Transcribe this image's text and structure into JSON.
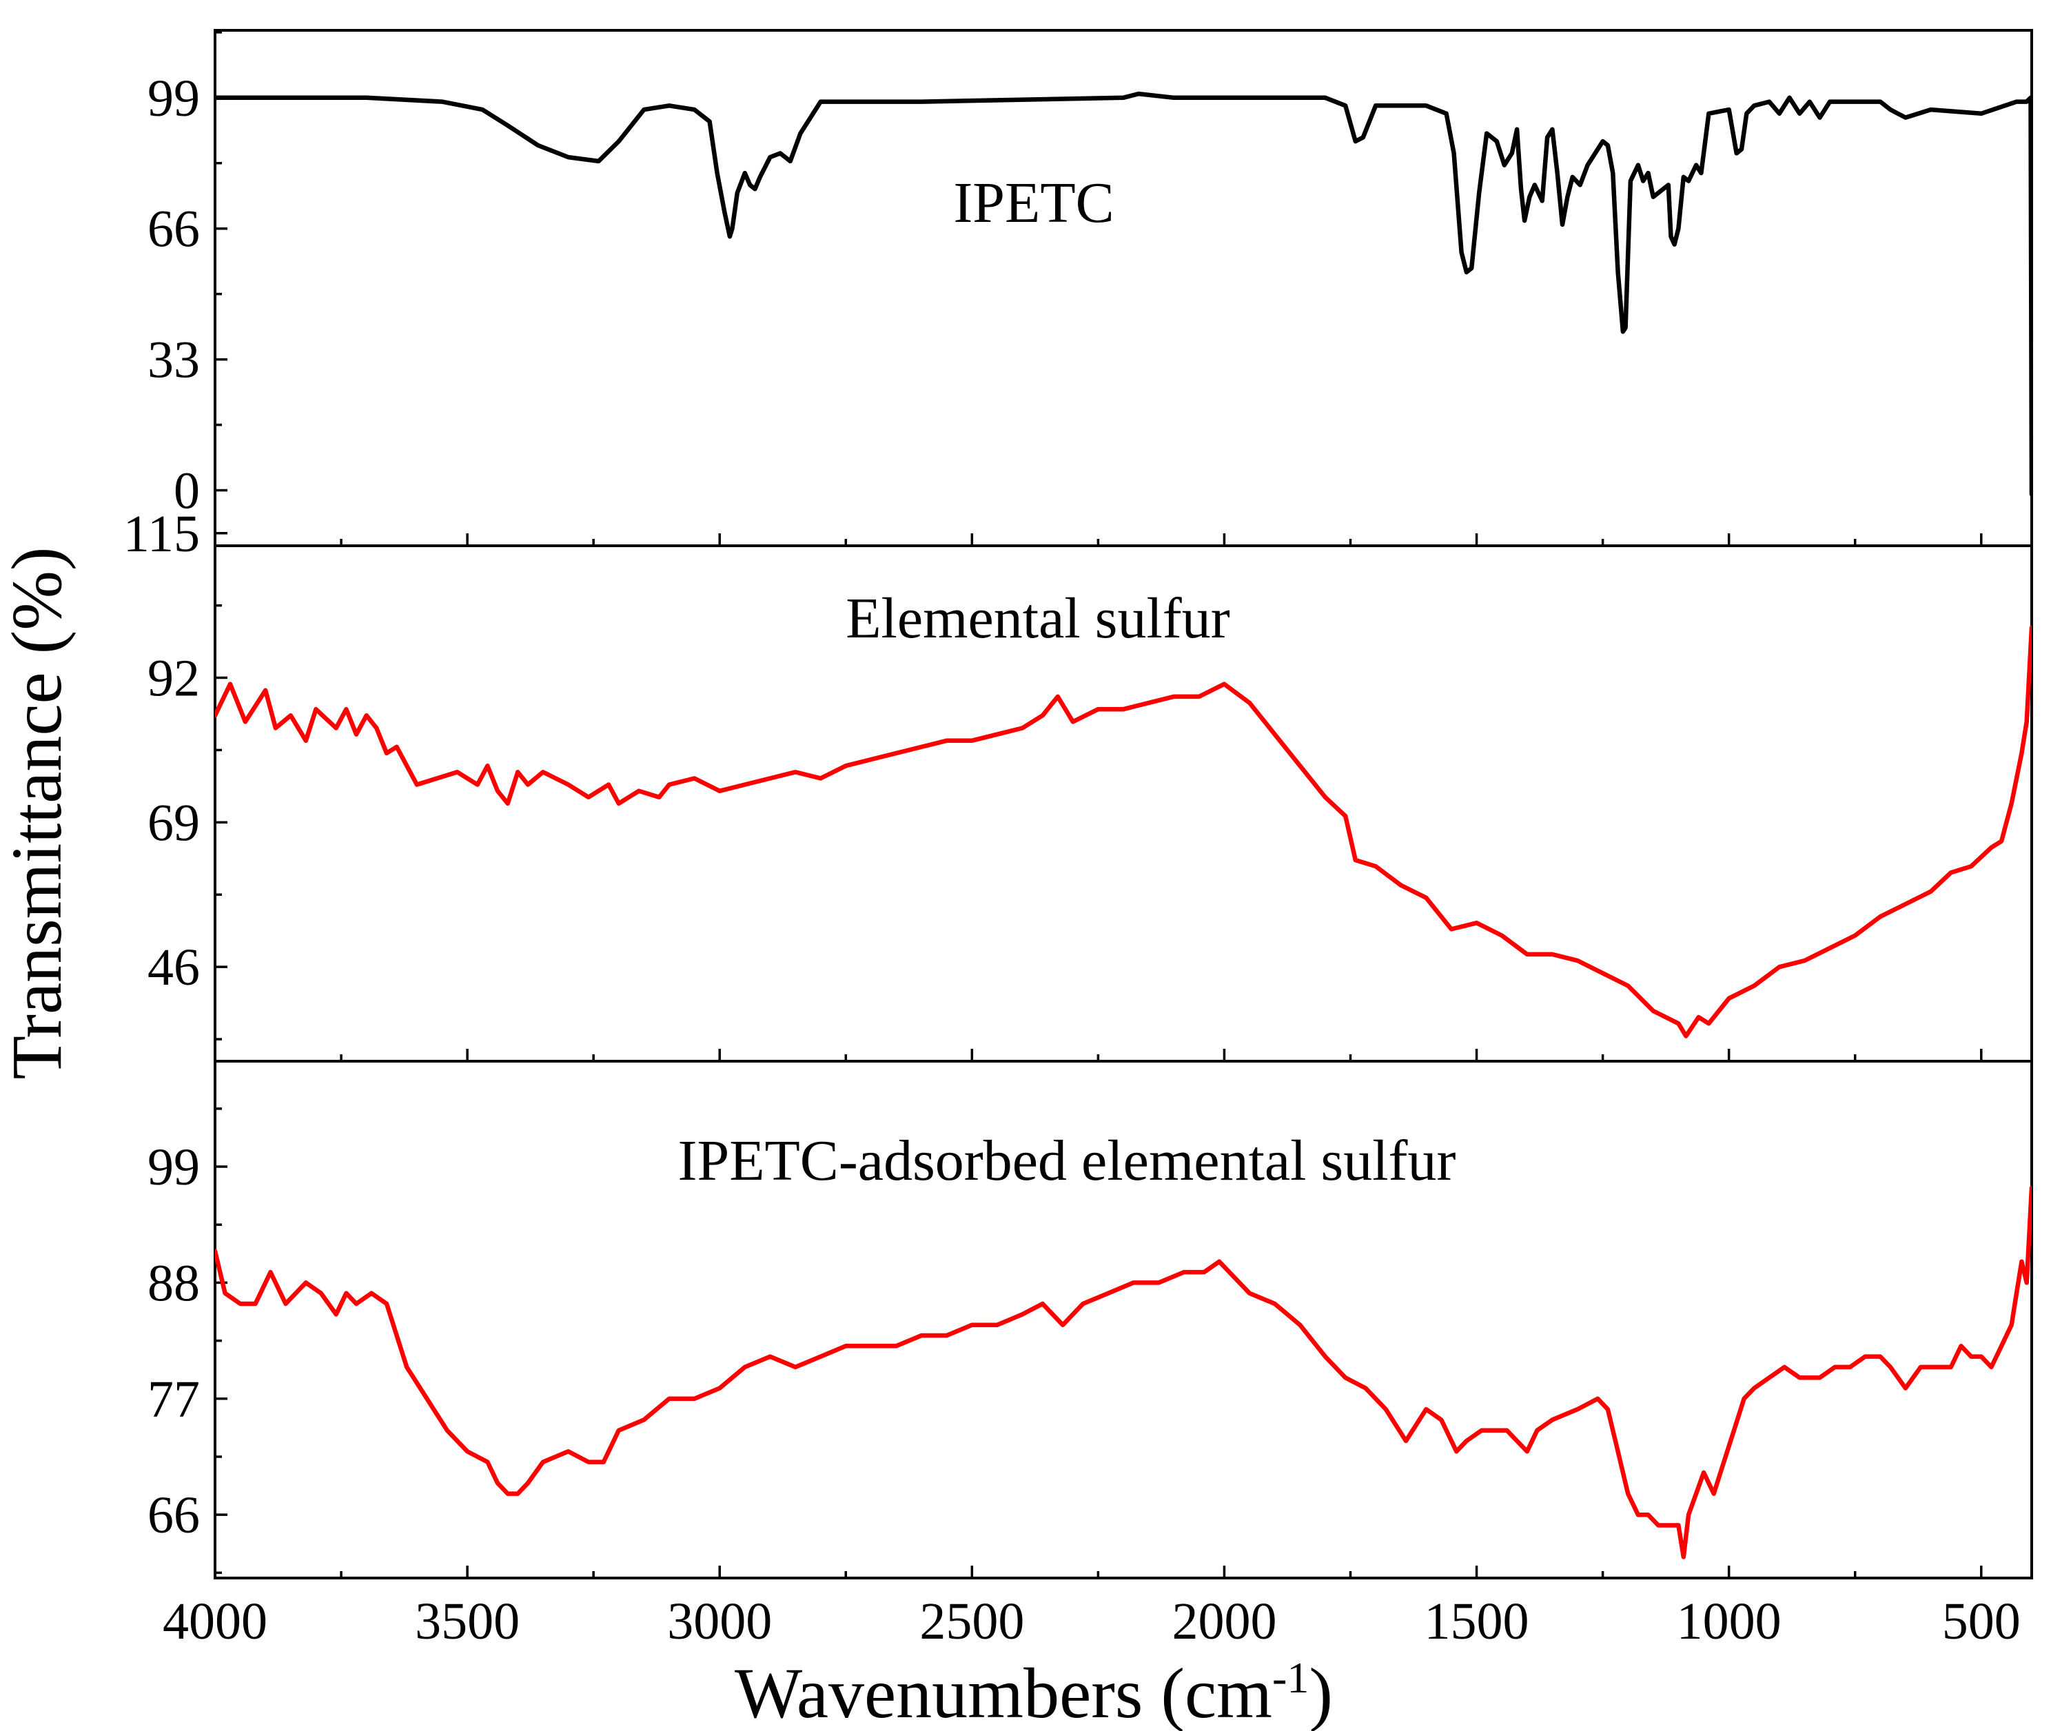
{
  "figure": {
    "xlabel": "Wavenumbers (cm",
    "xlabel_sup": "-1",
    "xlabel_close": ")",
    "ylabel": "Transmittance (%)"
  },
  "chart_data": [
    {
      "type": "line",
      "panel_label": "IPETC",
      "color": "#000000",
      "xlim": [
        4000,
        400
      ],
      "ylim": [
        -14,
        116
      ],
      "y_ticks": [
        0,
        33,
        66,
        99
      ],
      "x_ticks": [
        4000,
        3500,
        3000,
        2500,
        2000,
        1500,
        1000,
        500
      ],
      "x_tick_labels": [
        "4000",
        "3500",
        "3000",
        "2500",
        "2000",
        "1500",
        "1000",
        "500"
      ],
      "x": [
        4000,
        3700,
        3550,
        3470,
        3420,
        3360,
        3300,
        3240,
        3200,
        3150,
        3100,
        3050,
        3020,
        3005,
        2990,
        2980,
        2975,
        2965,
        2950,
        2940,
        2930,
        2920,
        2900,
        2880,
        2860,
        2840,
        2800,
        2600,
        2200,
        2170,
        2100,
        2000,
        1800,
        1760,
        1740,
        1725,
        1700,
        1600,
        1560,
        1545,
        1530,
        1520,
        1510,
        1495,
        1480,
        1460,
        1445,
        1430,
        1420,
        1412,
        1405,
        1395,
        1385,
        1370,
        1360,
        1350,
        1340,
        1330,
        1320,
        1310,
        1295,
        1280,
        1250,
        1240,
        1230,
        1220,
        1210,
        1205,
        1195,
        1180,
        1170,
        1160,
        1150,
        1140,
        1130,
        1120,
        1115,
        1108,
        1100,
        1090,
        1080,
        1065,
        1055,
        1040,
        1000,
        985,
        975,
        965,
        950,
        920,
        900,
        880,
        860,
        840,
        820,
        800,
        700,
        680,
        650,
        600,
        500,
        430,
        410,
        402,
        400
      ],
      "y": [
        99,
        99,
        98,
        96,
        92,
        87,
        84,
        83,
        88,
        96,
        97,
        96,
        93,
        80,
        70,
        64,
        66,
        75,
        80,
        77,
        76,
        79,
        84,
        85,
        83,
        90,
        98,
        98,
        99,
        100,
        99,
        99,
        99,
        97,
        88,
        89,
        97,
        97,
        95,
        85,
        60,
        55,
        56,
        75,
        90,
        88,
        82,
        85,
        91,
        76,
        68,
        74,
        77,
        73,
        89,
        91,
        80,
        67,
        74,
        79,
        77,
        82,
        88,
        87,
        80,
        55,
        40,
        41,
        78,
        82,
        78,
        80,
        74,
        75,
        76,
        77,
        64,
        62,
        66,
        79,
        78,
        82,
        80,
        95,
        96,
        85,
        86,
        95,
        97,
        98,
        95,
        99,
        95,
        98,
        94,
        98,
        98,
        96,
        94,
        96,
        95,
        98,
        98,
        99,
        -1
      ]
    },
    {
      "type": "line",
      "panel_label": "Elemental sulfur",
      "color": "#ff0000",
      "xlim": [
        4000,
        400
      ],
      "ylim": [
        31,
        113
      ],
      "y_ticks": [
        46,
        69,
        92,
        115
      ],
      "x_ticks": [
        4000,
        3500,
        3000,
        2500,
        2000,
        1500,
        1000,
        500
      ],
      "x": [
        4000,
        3970,
        3940,
        3900,
        3880,
        3850,
        3820,
        3800,
        3760,
        3740,
        3720,
        3700,
        3680,
        3660,
        3640,
        3600,
        3560,
        3520,
        3480,
        3460,
        3440,
        3420,
        3400,
        3380,
        3350,
        3300,
        3260,
        3220,
        3200,
        3180,
        3160,
        3120,
        3100,
        3050,
        3000,
        2950,
        2900,
        2850,
        2800,
        2750,
        2700,
        2650,
        2600,
        2550,
        2500,
        2450,
        2400,
        2360,
        2330,
        2300,
        2250,
        2200,
        2150,
        2100,
        2050,
        2000,
        1950,
        1900,
        1850,
        1800,
        1760,
        1740,
        1700,
        1650,
        1600,
        1550,
        1500,
        1450,
        1400,
        1350,
        1300,
        1250,
        1200,
        1150,
        1100,
        1085,
        1060,
        1040,
        1000,
        950,
        900,
        850,
        800,
        750,
        700,
        650,
        600,
        560,
        520,
        480,
        460,
        440,
        420,
        410,
        400
      ],
      "y": [
        86,
        91,
        85,
        90,
        84,
        86,
        82,
        87,
        84,
        87,
        83,
        86,
        84,
        80,
        81,
        75,
        76,
        77,
        75,
        78,
        74,
        72,
        77,
        75,
        77,
        75,
        73,
        75,
        72,
        73,
        74,
        73,
        75,
        76,
        74,
        75,
        76,
        77,
        76,
        78,
        79,
        80,
        81,
        82,
        82,
        83,
        84,
        86,
        89,
        85,
        87,
        87,
        88,
        89,
        89,
        91,
        88,
        83,
        78,
        73,
        70,
        63,
        62,
        59,
        57,
        52,
        53,
        51,
        48,
        48,
        47,
        45,
        43,
        39,
        37,
        35,
        38,
        37,
        41,
        43,
        46,
        47,
        49,
        51,
        54,
        56,
        58,
        61,
        62,
        65,
        66,
        72,
        80,
        85,
        100
      ]
    },
    {
      "type": "line",
      "panel_label": "IPETC-adsorbed elemental sulfur",
      "color": "#ff0000",
      "xlim": [
        4000,
        400
      ],
      "ylim": [
        60,
        109
      ],
      "y_ticks": [
        66,
        77,
        88,
        99
      ],
      "x_ticks": [
        4000,
        3500,
        3000,
        2500,
        2000,
        1500,
        1000,
        500
      ],
      "x": [
        4000,
        3980,
        3950,
        3920,
        3890,
        3860,
        3820,
        3790,
        3760,
        3740,
        3720,
        3690,
        3660,
        3620,
        3580,
        3540,
        3500,
        3460,
        3440,
        3420,
        3400,
        3380,
        3350,
        3300,
        3260,
        3230,
        3200,
        3150,
        3100,
        3050,
        3000,
        2950,
        2900,
        2850,
        2800,
        2750,
        2700,
        2650,
        2600,
        2550,
        2500,
        2450,
        2400,
        2360,
        2320,
        2280,
        2230,
        2180,
        2130,
        2080,
        2040,
        2010,
        1990,
        1950,
        1900,
        1850,
        1800,
        1760,
        1720,
        1680,
        1640,
        1600,
        1570,
        1540,
        1520,
        1490,
        1460,
        1440,
        1420,
        1400,
        1380,
        1350,
        1300,
        1260,
        1240,
        1220,
        1200,
        1180,
        1160,
        1140,
        1120,
        1100,
        1090,
        1080,
        1065,
        1050,
        1030,
        1010,
        990,
        970,
        950,
        920,
        890,
        860,
        840,
        820,
        790,
        760,
        730,
        700,
        680,
        650,
        620,
        590,
        560,
        540,
        520,
        500,
        480,
        460,
        440,
        430,
        420,
        410,
        400
      ],
      "y": [
        91,
        87,
        86,
        86,
        89,
        86,
        88,
        87,
        85,
        87,
        86,
        87,
        86,
        80,
        77,
        74,
        72,
        71,
        69,
        68,
        68,
        69,
        71,
        72,
        71,
        71,
        74,
        75,
        77,
        77,
        78,
        80,
        81,
        80,
        81,
        82,
        82,
        82,
        83,
        83,
        84,
        84,
        85,
        86,
        84,
        86,
        87,
        88,
        88,
        89,
        89,
        90,
        89,
        87,
        86,
        84,
        81,
        79,
        78,
        76,
        73,
        76,
        75,
        72,
        73,
        74,
        74,
        74,
        73,
        72,
        74,
        75,
        76,
        77,
        76,
        72,
        68,
        66,
        66,
        65,
        65,
        65,
        62,
        66,
        68,
        70,
        68,
        71,
        74,
        77,
        78,
        79,
        80,
        79,
        79,
        79,
        80,
        80,
        81,
        81,
        80,
        78,
        80,
        80,
        80,
        82,
        81,
        81,
        80,
        82,
        84,
        87,
        90,
        88,
        97
      ]
    }
  ]
}
